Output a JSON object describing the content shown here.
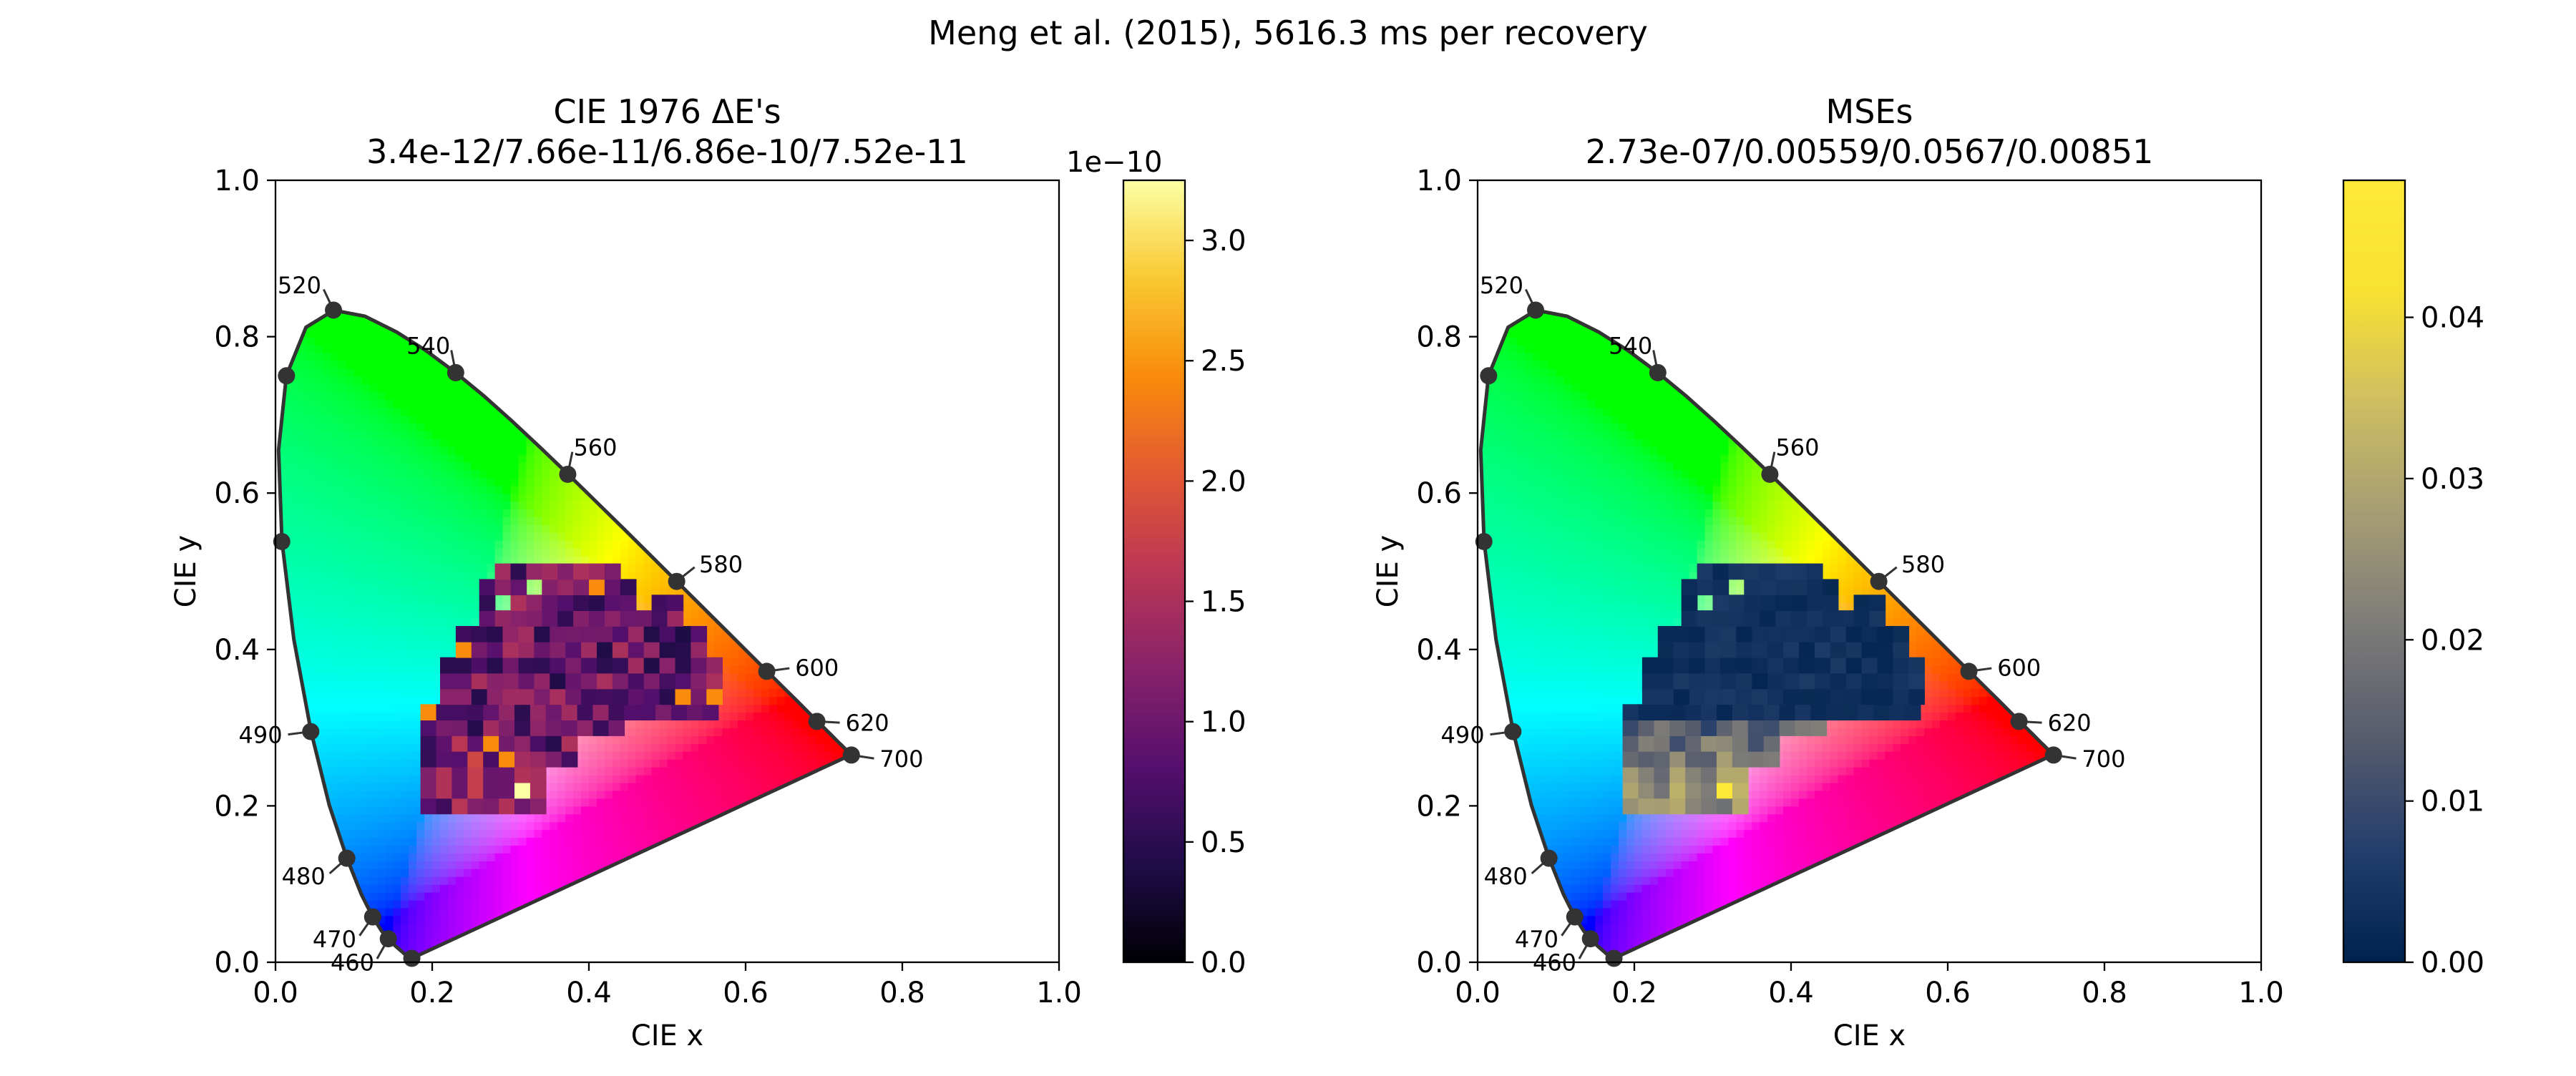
{
  "figure_title": "Meng et al. (2015), 5616.3 ms per recovery",
  "chart_data": [
    {
      "type": "heatmap",
      "title": "CIE 1976 ΔE's",
      "subtitle": "3.4e-12/7.66e-11/6.86e-10/7.52e-11",
      "xlabel": "CIE x",
      "ylabel": "CIE y",
      "xlim": [
        0,
        1
      ],
      "ylim": [
        0,
        1
      ],
      "x_ticks": [
        "0.0",
        "0.2",
        "0.4",
        "0.6",
        "0.8",
        "1.0"
      ],
      "y_ticks": [
        "0.0",
        "0.2",
        "0.4",
        "0.6",
        "0.8",
        "1.0"
      ],
      "wavelength_labels": [
        {
          "nm": "460",
          "x": 0.144,
          "y": 0.03
        },
        {
          "nm": "470",
          "x": 0.124,
          "y": 0.058
        },
        {
          "nm": "480",
          "x": 0.091,
          "y": 0.133
        },
        {
          "nm": "490",
          "x": 0.045,
          "y": 0.295
        },
        {
          "nm": "520",
          "x": 0.074,
          "y": 0.834
        },
        {
          "nm": "540",
          "x": 0.23,
          "y": 0.754
        },
        {
          "nm": "560",
          "x": 0.373,
          "y": 0.624
        },
        {
          "nm": "580",
          "x": 0.512,
          "y": 0.487
        },
        {
          "nm": "600",
          "x": 0.627,
          "y": 0.372
        },
        {
          "nm": "620",
          "x": 0.691,
          "y": 0.308
        },
        {
          "nm": "700",
          "x": 0.735,
          "y": 0.265
        }
      ],
      "unlabeled_markers": [
        {
          "x": 0.174,
          "y": 0.005
        },
        {
          "x": 0.008,
          "y": 0.538
        },
        {
          "x": 0.014,
          "y": 0.75
        }
      ],
      "colorbar": {
        "colormap": "inferno",
        "multiplier_label": "1e−10",
        "range": [
          0,
          3.25
        ],
        "ticks": [
          "0.0",
          "0.5",
          "1.0",
          "1.5",
          "2.0",
          "2.5",
          "3.0"
        ]
      }
    },
    {
      "type": "heatmap",
      "title": "MSEs",
      "subtitle": "2.73e-07/0.00559/0.0567/0.00851",
      "xlabel": "CIE x",
      "ylabel": "CIE y",
      "xlim": [
        0,
        1
      ],
      "ylim": [
        0,
        1
      ],
      "x_ticks": [
        "0.0",
        "0.2",
        "0.4",
        "0.6",
        "0.8",
        "1.0"
      ],
      "y_ticks": [
        "0.0",
        "0.2",
        "0.4",
        "0.6",
        "0.8",
        "1.0"
      ],
      "wavelength_labels": [
        {
          "nm": "460",
          "x": 0.144,
          "y": 0.03
        },
        {
          "nm": "470",
          "x": 0.124,
          "y": 0.058
        },
        {
          "nm": "480",
          "x": 0.091,
          "y": 0.133
        },
        {
          "nm": "490",
          "x": 0.045,
          "y": 0.295
        },
        {
          "nm": "520",
          "x": 0.074,
          "y": 0.834
        },
        {
          "nm": "540",
          "x": 0.23,
          "y": 0.754
        },
        {
          "nm": "560",
          "x": 0.373,
          "y": 0.624
        },
        {
          "nm": "580",
          "x": 0.512,
          "y": 0.487
        },
        {
          "nm": "600",
          "x": 0.627,
          "y": 0.372
        },
        {
          "nm": "620",
          "x": 0.691,
          "y": 0.308
        },
        {
          "nm": "700",
          "x": 0.735,
          "y": 0.265
        }
      ],
      "unlabeled_markers": [
        {
          "x": 0.174,
          "y": 0.005
        },
        {
          "x": 0.008,
          "y": 0.538
        },
        {
          "x": 0.014,
          "y": 0.75
        }
      ],
      "colorbar": {
        "colormap": "cividis",
        "multiplier_label": "",
        "range": [
          0,
          0.0485
        ],
        "ticks": [
          "0.00",
          "0.01",
          "0.02",
          "0.03",
          "0.04"
        ]
      }
    }
  ],
  "colors": {
    "locus_stroke": "#333333",
    "marker_fill": "#333333"
  }
}
